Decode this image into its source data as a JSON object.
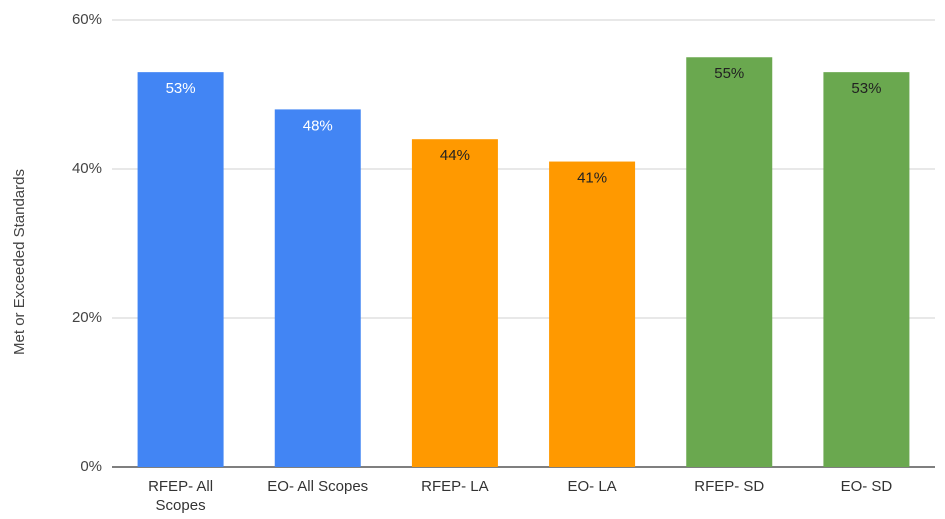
{
  "chart_data": {
    "type": "bar",
    "y_label": "Met or Exceeded Standards",
    "categories": [
      "RFEP- All Scopes",
      "EO- All Scopes",
      "RFEP- LA",
      "EO- LA",
      "RFEP- SD",
      "EO- SD"
    ],
    "values": [
      53,
      48,
      44,
      41,
      55,
      53
    ],
    "value_labels": [
      "53%",
      "48%",
      "44%",
      "41%",
      "55%",
      "53%"
    ],
    "colors": [
      "#4285f4",
      "#4285f4",
      "#ff9900",
      "#ff9900",
      "#6aa84f",
      "#6aa84f"
    ],
    "label_colors": [
      "#ffffff",
      "#ffffff",
      "#222222",
      "#222222",
      "#222222",
      "#222222"
    ],
    "ylim": [
      0,
      60
    ],
    "yticks": [
      {
        "value": 0,
        "label": "0%"
      },
      {
        "value": 20,
        "label": "20%"
      },
      {
        "value": 40,
        "label": "40%"
      },
      {
        "value": 60,
        "label": "60%"
      }
    ],
    "grid": true
  }
}
